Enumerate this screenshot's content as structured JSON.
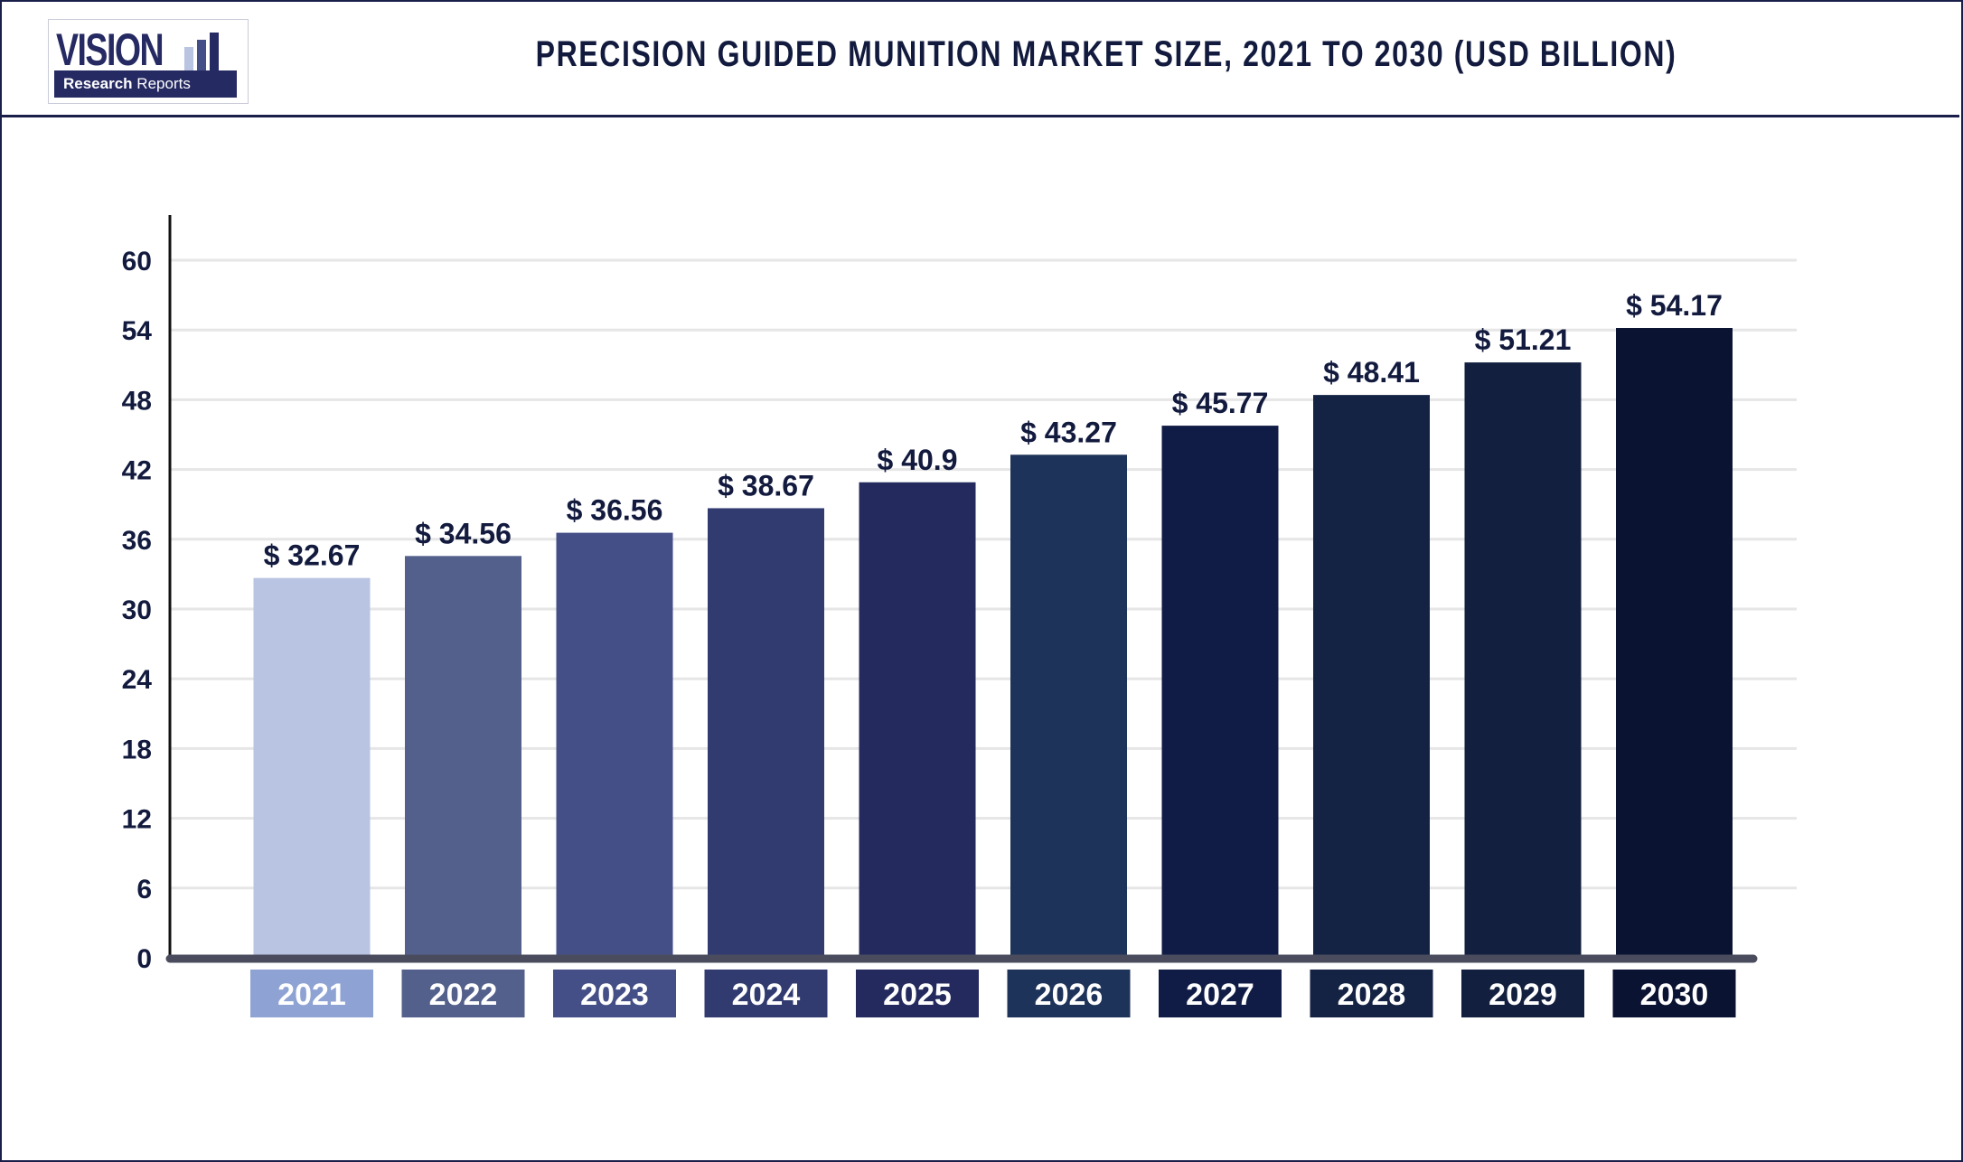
{
  "header": {
    "logo": {
      "word": "VISION",
      "tagline_bold": "Research",
      "tagline_light": "Reports"
    },
    "title": "PRECISION GUIDED MUNITION MARKET SIZE, 2021 TO 2030 (USD BILLION)"
  },
  "chart_data": {
    "type": "bar",
    "title": "PRECISION GUIDED MUNITION MARKET SIZE, 2021 TO 2030 (USD BILLION)",
    "categories": [
      "2021",
      "2022",
      "2023",
      "2024",
      "2025",
      "2026",
      "2027",
      "2028",
      "2029",
      "2030"
    ],
    "values": [
      32.67,
      34.56,
      36.56,
      38.67,
      40.9,
      43.27,
      45.77,
      48.41,
      51.21,
      54.17
    ],
    "data_labels": [
      "$ 32.67",
      "$ 34.56",
      "$ 36.56",
      "$ 38.67",
      "$ 40.9",
      "$ 43.27",
      "$ 45.77",
      "$ 48.41",
      "$ 51.21",
      "$ 54.17"
    ],
    "yticks": [
      0,
      6,
      12,
      18,
      24,
      30,
      36,
      42,
      48,
      54,
      60
    ],
    "ylim": [
      0,
      60
    ],
    "xlabel": "",
    "ylabel": "",
    "grid": true,
    "legend": "none",
    "bar_colors": [
      "#b9c3e2",
      "#54608c",
      "#454f87",
      "#313b70",
      "#242a5e",
      "#1e3359",
      "#101c45",
      "#142244",
      "#121f3e",
      "#0b1332"
    ],
    "category_box_colors": [
      "#8fa2d4",
      "#54608c",
      "#454f87",
      "#313b70",
      "#242a5e",
      "#1e3359",
      "#101c45",
      "#142244",
      "#121f3e",
      "#0b1332"
    ],
    "label_color": "#121a3e",
    "axis_color": "#4a4c5e"
  }
}
